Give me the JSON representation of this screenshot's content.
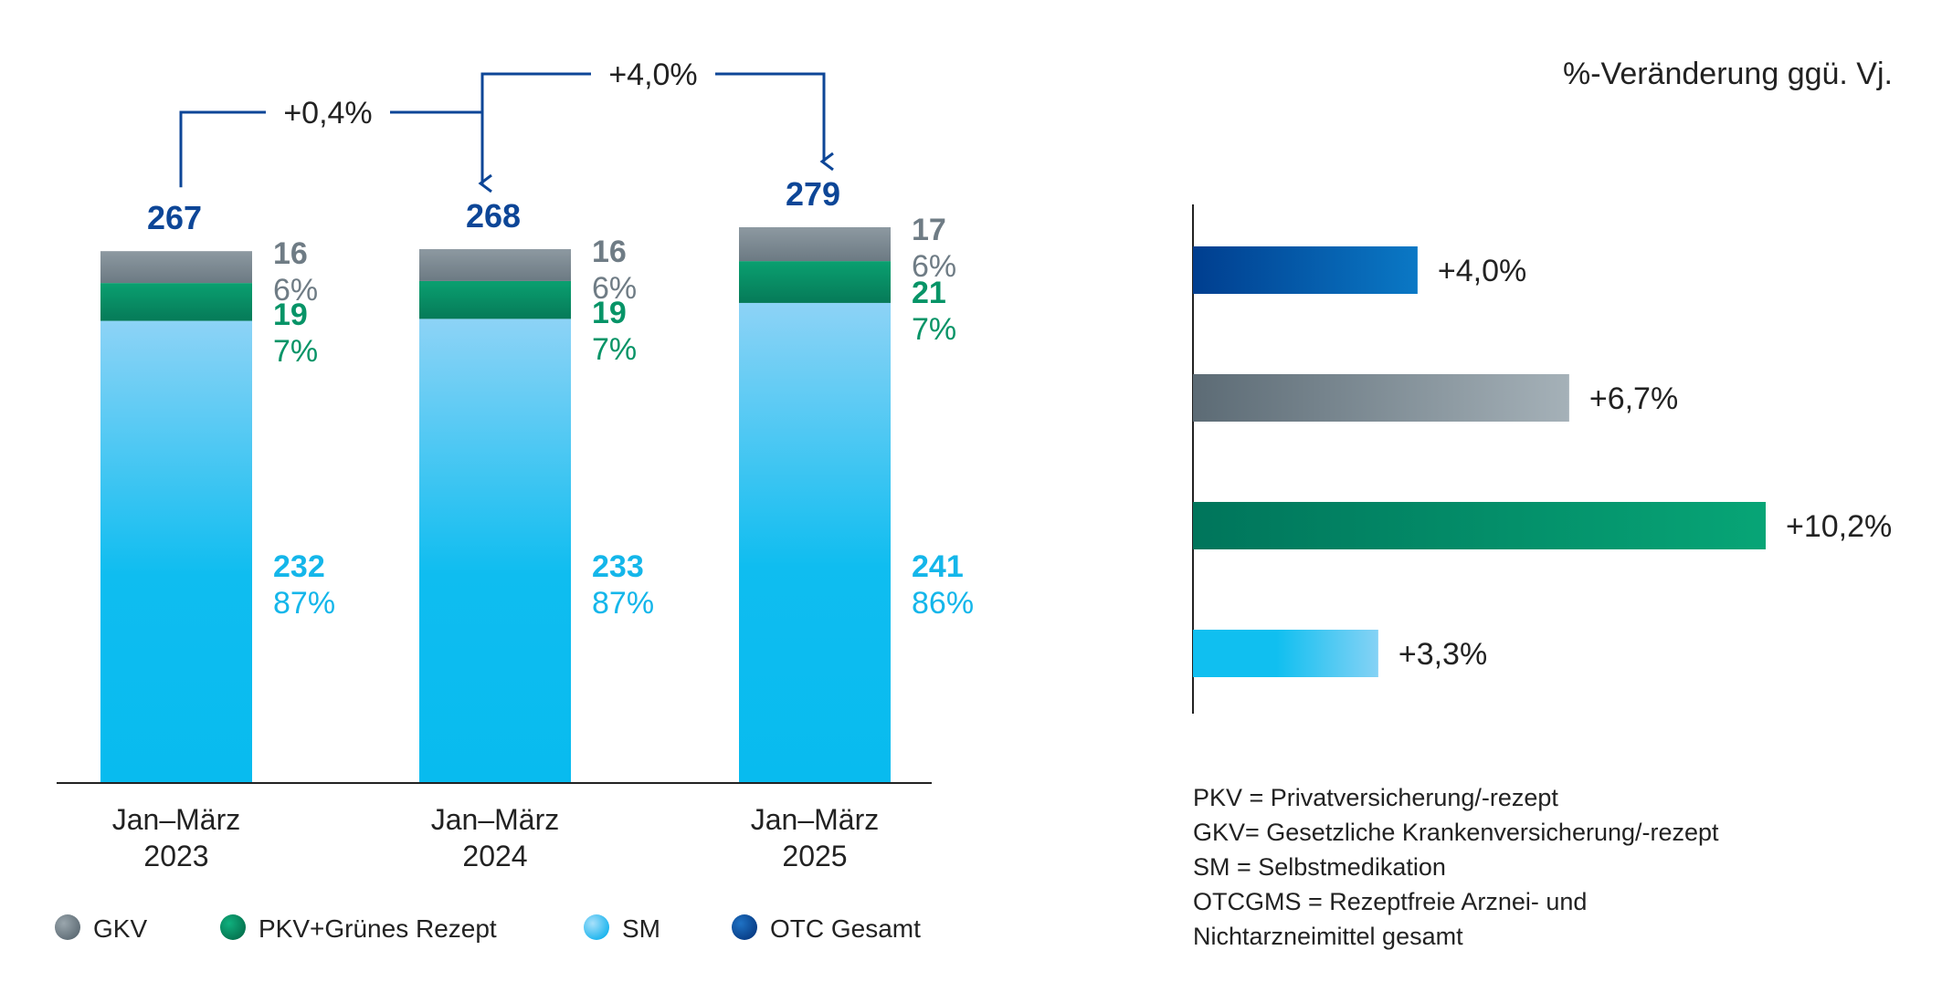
{
  "colors": {
    "gkv": "#7d8b94",
    "pkv": "#079467",
    "sm": "#0ebcec",
    "otc": "#0d4697",
    "axis": "#222222",
    "text": "#222222"
  },
  "right_title": "%-Veränderung ggü. Vj.",
  "legend": [
    {
      "label": "GKV",
      "color": "#6f7c85"
    },
    {
      "label": "PKV+Grünes Rezept",
      "color": "#0b8a5e"
    },
    {
      "label": "SM",
      "color": "#2bb8f0"
    },
    {
      "label": "OTC Gesamt",
      "color": "#0d4697"
    }
  ],
  "notes": [
    "PKV = Privatversicherung/-rezept",
    "GKV= Gesetzliche Krankenversicherung/-rezept",
    "SM = Selbstmedikation",
    "OTCGMS = Rezeptfreie Arznei- und",
    "Nichtarzneimittel gesamt"
  ],
  "chart_data": [
    {
      "type": "bar",
      "stacked": true,
      "categories": [
        [
          "Jan–März",
          "2023"
        ],
        [
          "Jan–März",
          "2024"
        ],
        [
          "Jan–März",
          "2025"
        ]
      ],
      "series": [
        {
          "key": "sm",
          "values": [
            232,
            233,
            241
          ],
          "percent_labels": [
            "87%",
            "87%",
            "86%"
          ]
        },
        {
          "key": "pkv",
          "values": [
            19,
            19,
            21
          ],
          "percent_labels": [
            "7%",
            "7%",
            "7%"
          ]
        },
        {
          "key": "gkv",
          "values": [
            16,
            16,
            17
          ],
          "percent_labels": [
            "6%",
            "6%",
            "6%"
          ]
        }
      ],
      "totals": [
        267,
        268,
        279
      ],
      "changes": [
        {
          "from": 0,
          "to": 1,
          "label": "+0,4%"
        },
        {
          "from": 1,
          "to": 2,
          "label": "+4,0%"
        }
      ],
      "ylim": [
        0,
        279
      ],
      "grid": false
    },
    {
      "type": "bar",
      "orientation": "horizontal",
      "categories": [
        "OTC Gesamt",
        "GKV",
        "PKV+Grünes Rezept",
        "SM"
      ],
      "values": [
        4.0,
        6.7,
        10.2,
        3.3
      ],
      "value_labels": [
        "+4,0%",
        "+6,7%",
        "+10,2%",
        "+3,3%"
      ],
      "bar_colors": [
        [
          "#003e8f",
          "#0a78c5"
        ],
        [
          "#5c6b75",
          "#a5b1b8"
        ],
        [
          "#00755b",
          "#07a576"
        ],
        [
          "#10bff0",
          "#85d2f5"
        ]
      ],
      "xlim": [
        0,
        10.2
      ],
      "grid": false
    }
  ]
}
